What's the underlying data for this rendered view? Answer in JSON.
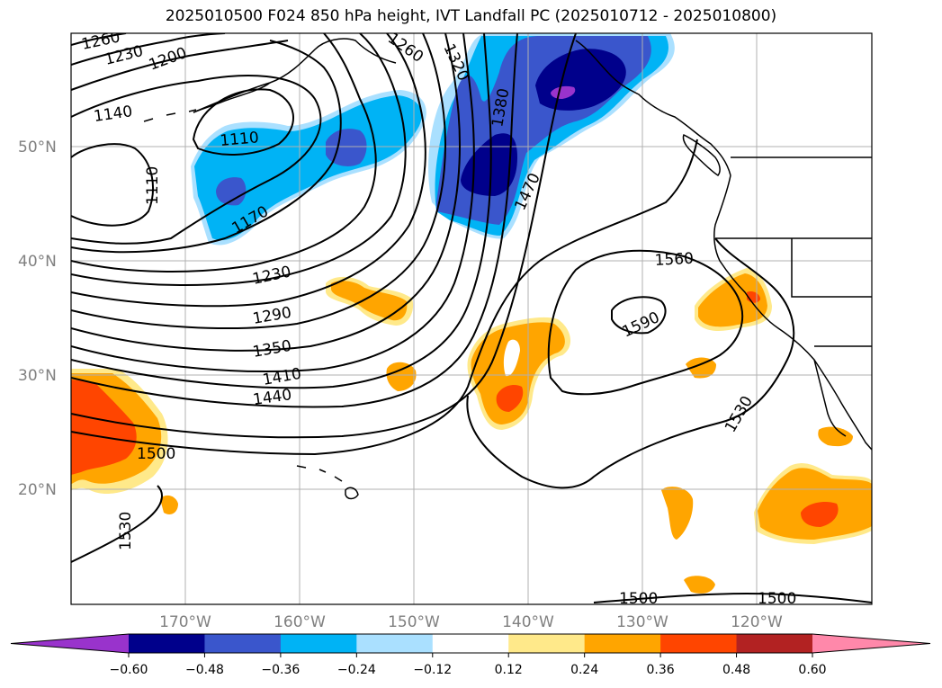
{
  "title": "2025010500 F024 850 hPa height, IVT Landfall PC (2025010712 - 2025010800)",
  "map": {
    "lon_range": [
      -180,
      -110
    ],
    "lat_range": [
      10,
      60
    ],
    "lat_ticks": [
      "50°N",
      "40°N",
      "30°N",
      "20°N"
    ],
    "lon_ticks": [
      "170°W",
      "160°W",
      "150°W",
      "140°W",
      "130°W",
      "120°W"
    ],
    "grid": true
  },
  "contour_labels": [
    "1260",
    "1230",
    "1200",
    "1140",
    "1110",
    "1110",
    "1170",
    "1230",
    "1290",
    "1350",
    "1410",
    "1440",
    "1500",
    "1530",
    "1320",
    "1260",
    "1380",
    "1470",
    "1560",
    "1590",
    "1530",
    "1500",
    "1500"
  ],
  "colorbar": {
    "ticks": [
      "−0.60",
      "−0.48",
      "−0.36",
      "−0.24",
      "−0.12",
      "0.12",
      "0.24",
      "0.36",
      "0.48",
      "0.60"
    ],
    "colors": [
      "#9933cc",
      "#00008b",
      "#3a56cc",
      "#00b3f5",
      "#aae0ff",
      "#ffffff",
      "#ffe98a",
      "#ffa500",
      "#ff4500",
      "#b22222",
      "#ff88aa"
    ]
  }
}
